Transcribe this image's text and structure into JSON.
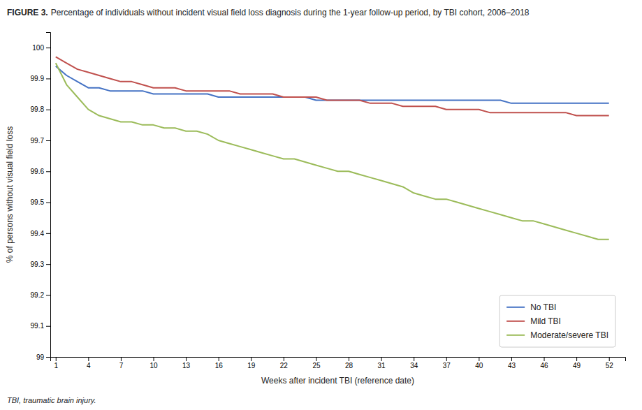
{
  "chart_data": {
    "type": "line",
    "title": "FIGURE 3.",
    "subtitle": "Percentage of individuals without incident visual field loss diagnosis during the 1-year follow-up period, by TBI cohort, 2006–2018",
    "x_label": "Weeks after incident TBI (reference date)",
    "y_label": "% of persons without visual field loss",
    "footnote": "TBI, traumatic brain injury.",
    "x": [
      1,
      2,
      3,
      4,
      5,
      6,
      7,
      8,
      9,
      10,
      11,
      12,
      13,
      14,
      15,
      16,
      17,
      18,
      19,
      20,
      21,
      22,
      23,
      24,
      25,
      26,
      27,
      28,
      29,
      30,
      31,
      32,
      33,
      34,
      35,
      36,
      37,
      38,
      39,
      40,
      41,
      42,
      43,
      44,
      45,
      46,
      47,
      48,
      49,
      50,
      51,
      52
    ],
    "xlim": [
      0.5,
      53.5
    ],
    "xticks": [
      1,
      4,
      7,
      10,
      13,
      16,
      19,
      22,
      25,
      28,
      31,
      34,
      37,
      40,
      43,
      46,
      49,
      52
    ],
    "ylim": [
      99.0,
      100.05
    ],
    "yticks": [
      99,
      99.1,
      99.2,
      99.3,
      99.4,
      99.5,
      99.6,
      99.7,
      99.8,
      99.9,
      100
    ],
    "grid": false,
    "legend": "lower right",
    "series": [
      {
        "name": "No TBI",
        "color": "#4472C4",
        "values": [
          99.94,
          99.91,
          99.89,
          99.87,
          99.87,
          99.86,
          99.86,
          99.86,
          99.86,
          99.85,
          99.85,
          99.85,
          99.85,
          99.85,
          99.85,
          99.84,
          99.84,
          99.84,
          99.84,
          99.84,
          99.84,
          99.84,
          99.84,
          99.84,
          99.83,
          99.83,
          99.83,
          99.83,
          99.83,
          99.83,
          99.83,
          99.83,
          99.83,
          99.83,
          99.83,
          99.83,
          99.83,
          99.83,
          99.83,
          99.83,
          99.83,
          99.83,
          99.82,
          99.82,
          99.82,
          99.82,
          99.82,
          99.82,
          99.82,
          99.82,
          99.82,
          99.82
        ]
      },
      {
        "name": "Mild TBI",
        "color": "#C0504D",
        "values": [
          99.97,
          99.95,
          99.93,
          99.92,
          99.91,
          99.9,
          99.89,
          99.89,
          99.88,
          99.87,
          99.87,
          99.87,
          99.86,
          99.86,
          99.86,
          99.86,
          99.86,
          99.85,
          99.85,
          99.85,
          99.85,
          99.84,
          99.84,
          99.84,
          99.84,
          99.83,
          99.83,
          99.83,
          99.83,
          99.82,
          99.82,
          99.82,
          99.81,
          99.81,
          99.81,
          99.81,
          99.8,
          99.8,
          99.8,
          99.8,
          99.79,
          99.79,
          99.79,
          99.79,
          99.79,
          99.79,
          99.79,
          99.79,
          99.78,
          99.78,
          99.78,
          99.78
        ]
      },
      {
        "name": "Moderate/severe TBI",
        "color": "#9BBB59",
        "values": [
          99.95,
          99.88,
          99.84,
          99.8,
          99.78,
          99.77,
          99.76,
          99.76,
          99.75,
          99.75,
          99.74,
          99.74,
          99.73,
          99.73,
          99.72,
          99.7,
          99.69,
          99.68,
          99.67,
          99.66,
          99.65,
          99.64,
          99.64,
          99.63,
          99.62,
          99.61,
          99.6,
          99.6,
          99.59,
          99.58,
          99.57,
          99.56,
          99.55,
          99.53,
          99.52,
          99.51,
          99.51,
          99.5,
          99.49,
          99.48,
          99.47,
          99.46,
          99.45,
          99.44,
          99.44,
          99.43,
          99.42,
          99.41,
          99.4,
          99.39,
          99.38,
          99.38
        ]
      }
    ]
  }
}
